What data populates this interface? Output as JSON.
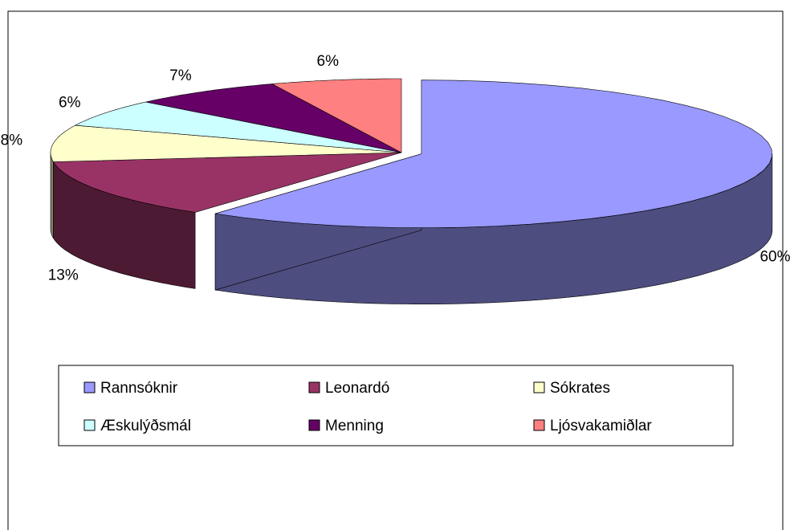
{
  "chart_data": {
    "type": "pie3d",
    "categories": [
      "Rannsóknir",
      "Leonardó",
      "Sókrates",
      "Æskulýðsmál",
      "Menning",
      "Ljósvakamiðlar"
    ],
    "values": [
      60,
      13,
      8,
      6,
      7,
      6
    ],
    "value_labels": [
      "60%",
      "13%",
      "8%",
      "6%",
      "7%",
      "6%"
    ],
    "colors": [
      "#9999ff",
      "#993366",
      "#ffffcc",
      "#ccffff",
      "#660066",
      "#ff8080"
    ],
    "exploded": [
      true,
      false,
      false,
      false,
      false,
      false
    ],
    "legend": "bottom"
  }
}
